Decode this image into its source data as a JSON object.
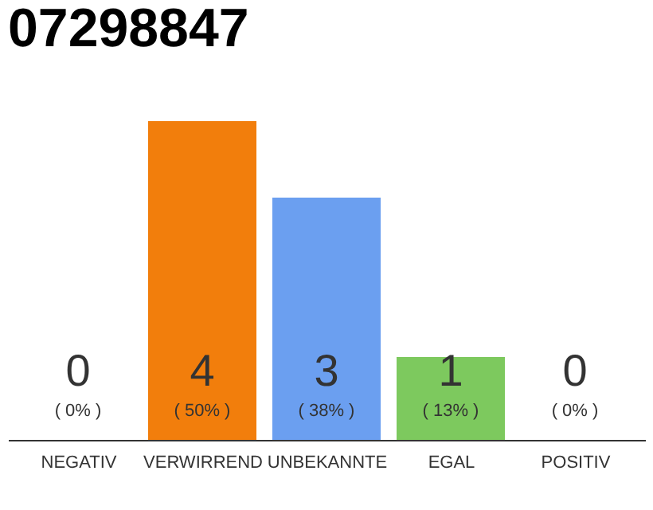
{
  "chart_data": {
    "type": "bar",
    "title": "07298847",
    "categories": [
      "NEGATIV",
      "VERWIRREND",
      "UNBEKANNTE",
      "EGAL",
      "POSITIV"
    ],
    "values": [
      0,
      50,
      38,
      13,
      0
    ],
    "colors": [
      "#eeeeee",
      "#f27e0c",
      "#6b9ff0",
      "#7dc95e",
      "#eeeeee"
    ],
    "value_labels": [
      "( 0% )",
      "( 50% )",
      "( 38% )",
      "( 13% )",
      "( 0% )"
    ],
    "annotations": [
      "0",
      "4",
      "3",
      "1",
      "0"
    ],
    "tick_labels": "x"
  }
}
